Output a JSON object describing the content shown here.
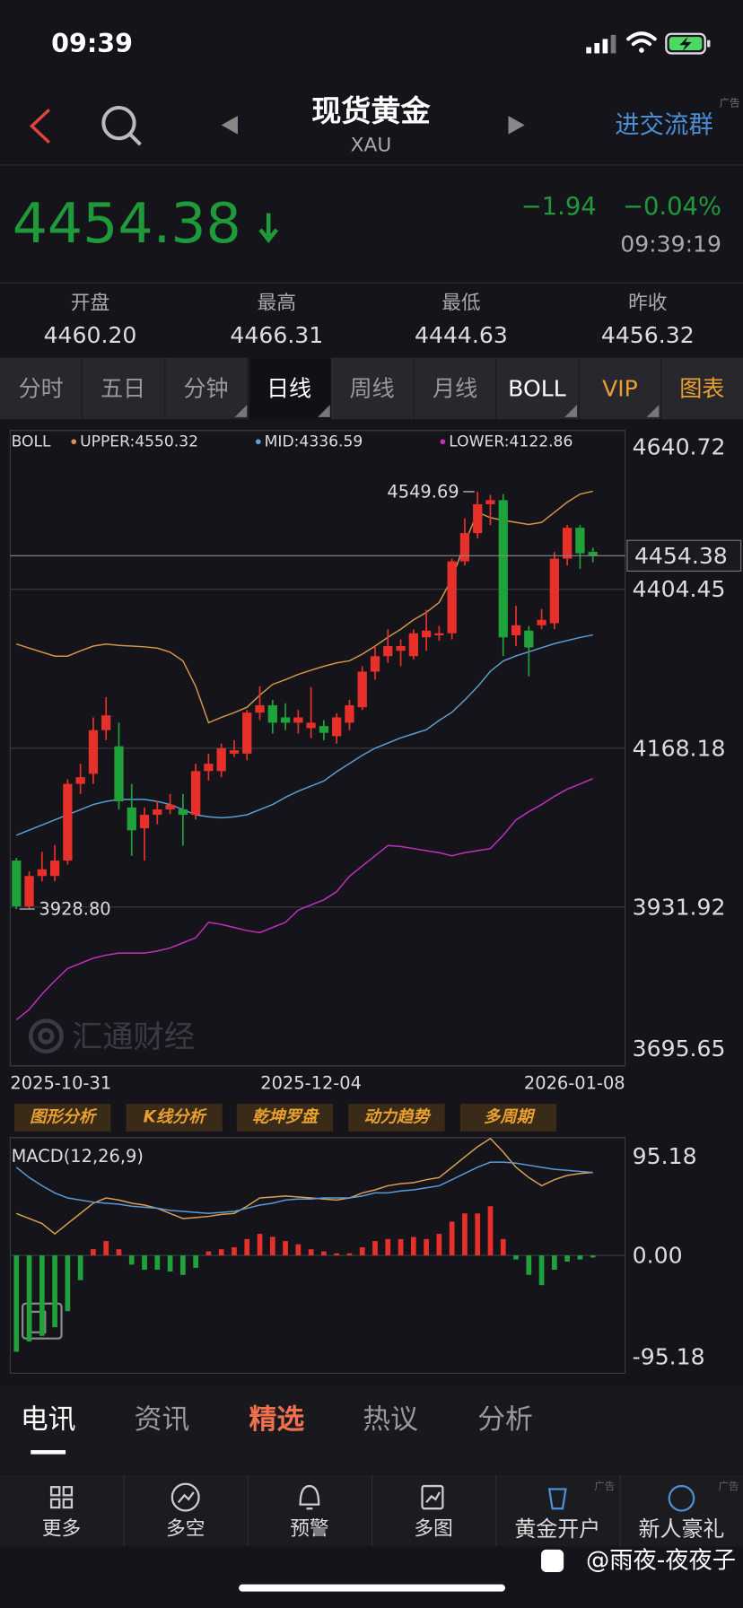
{
  "status": {
    "time": "09:39"
  },
  "header": {
    "title": "现货黄金",
    "subtitle": "XAU",
    "action": "进交流群",
    "ad": "广告"
  },
  "quote": {
    "price": "4454.38",
    "change": "−1.94",
    "change_pct": "−0.04%",
    "time": "09:39:19"
  },
  "stats": [
    {
      "label": "开盘",
      "value": "4460.20"
    },
    {
      "label": "最高",
      "value": "4466.31"
    },
    {
      "label": "最低",
      "value": "4444.63"
    },
    {
      "label": "昨收",
      "value": "4456.32"
    }
  ],
  "tabs": [
    "分时",
    "五日",
    "分钟",
    "日线",
    "周线",
    "月线",
    "BOLL",
    "VIP",
    "图表"
  ],
  "tools": [
    "图形分析",
    "K线分析",
    "乾坤罗盘",
    "动力趋势",
    "多周期"
  ],
  "news_tabs": [
    "电讯",
    "资讯",
    "精选",
    "热议",
    "分析"
  ],
  "nav": [
    "更多",
    "多空",
    "预警",
    "多图",
    "黄金开户",
    "新人豪礼"
  ],
  "watermark": "@雨夜-夜夜子",
  "chart_data": [
    {
      "type": "candlestick",
      "indicator": "BOLL",
      "watermark": "汇通财经",
      "up_color": "#e8302a",
      "down_color": "#1fa23a",
      "categories": [
        "2025-10-31",
        null,
        null,
        null,
        null,
        null,
        null,
        null,
        null,
        null,
        null,
        null,
        null,
        null,
        null,
        null,
        null,
        null,
        null,
        null,
        null,
        null,
        null,
        "2025-12-04",
        null,
        null,
        null,
        null,
        null,
        null,
        null,
        null,
        null,
        null,
        null,
        null,
        null,
        null,
        null,
        null,
        null,
        null,
        null,
        null,
        null,
        "2026-01-08"
      ],
      "open": [
        4001,
        3933,
        3978,
        3978,
        4001,
        4115,
        4130,
        4195,
        4171,
        4080,
        4049,
        4069,
        4077,
        4077,
        4069,
        4134,
        4134,
        4160,
        4160,
        4221,
        4232,
        4214,
        4206,
        4198,
        4201,
        4186,
        4206,
        4229,
        4282,
        4305,
        4313,
        4305,
        4333,
        4336,
        4339,
        4446,
        4488,
        4531,
        4537,
        4336,
        4343,
        4351,
        4354,
        4450,
        4496,
        4460.2
      ],
      "high": [
        4005,
        3985,
        4014,
        4024,
        4122,
        4145,
        4214,
        4244,
        4206,
        4115,
        4080,
        4090,
        4100,
        4100,
        4145,
        4160,
        4175,
        4180,
        4225,
        4260,
        4240,
        4235,
        4225,
        4259,
        4210,
        4220,
        4240,
        4290,
        4320,
        4345,
        4330,
        4345,
        4374,
        4350,
        4450,
        4510,
        4549.69,
        4545,
        4546,
        4380,
        4350,
        4375,
        4460,
        4500,
        4500,
        4466.31
      ],
      "low": [
        3928.8,
        3929,
        3970,
        3970,
        3995,
        4100,
        4115,
        4180,
        4077,
        4008,
        4001,
        4055,
        4070,
        4023,
        4062,
        4120,
        4125,
        4155,
        4150,
        4210,
        4190,
        4195,
        4190,
        4183,
        4180,
        4175,
        4195,
        4225,
        4270,
        4295,
        4290,
        4300,
        4313,
        4328,
        4330,
        4440,
        4480,
        4500,
        4305,
        4320,
        4275,
        4345,
        4345,
        4440,
        4435,
        4444.63
      ],
      "close": [
        3933,
        3978,
        3988,
        4001,
        4115,
        4125,
        4195,
        4217,
        4089,
        4046,
        4069,
        4077,
        4084,
        4069,
        4134,
        4145,
        4168,
        4165,
        4221,
        4232,
        4206,
        4206,
        4214,
        4206,
        4191,
        4214,
        4232,
        4282,
        4305,
        4320,
        4320,
        4339,
        4343,
        4339,
        4446,
        4488,
        4531,
        4537,
        4333,
        4351,
        4318,
        4359,
        4450,
        4496,
        4458,
        4454.38
      ],
      "series": [
        {
          "name": "UPPER:4550.32",
          "color": "#d4944a",
          "values": [
            4323,
            4317,
            4311,
            4305,
            4305,
            4313,
            4320,
            4323,
            4321,
            4320,
            4319,
            4317,
            4311,
            4298,
            4260,
            4206,
            4214,
            4221,
            4229,
            4247,
            4263,
            4270,
            4278,
            4284,
            4290,
            4295,
            4298,
            4308,
            4320,
            4333,
            4345,
            4359,
            4370,
            4385,
            4420,
            4473,
            4519,
            4511,
            4507,
            4504,
            4501,
            4504,
            4519,
            4534,
            4546,
            4550.32
          ]
        },
        {
          "name": "MID:4336.59",
          "color": "#5a9fd4",
          "values": [
            4038.6,
            4046.2,
            4053.8,
            4061.5,
            4069.1,
            4076.7,
            4084.3,
            4088.9,
            4092.0,
            4092.0,
            4092.0,
            4088.9,
            4084.3,
            4076.7,
            4069.1,
            4066.0,
            4064.5,
            4066.0,
            4069.1,
            4076.7,
            4084.3,
            4095.0,
            4104.1,
            4111.8,
            4119.4,
            4133.1,
            4145.3,
            4157.5,
            4168.2,
            4175.8,
            4183.4,
            4189.5,
            4195.6,
            4209.3,
            4221.5,
            4239.8,
            4259.6,
            4282.5,
            4297.7,
            4305.4,
            4311.5,
            4317.5,
            4323.6,
            4328.2,
            4332.8,
            4336.59
          ]
        },
        {
          "name": "LOWER:4122.86",
          "color": "#c030c0",
          "values": [
            3764.2,
            3779.5,
            3802.3,
            3822.2,
            3840.4,
            3848.1,
            3855.7,
            3860.3,
            3863.3,
            3863.3,
            3863.3,
            3866.4,
            3870.9,
            3878.5,
            3886.2,
            3909.0,
            3906.0,
            3901.4,
            3896.8,
            3893.8,
            3901.4,
            3909.0,
            3927.3,
            3934.9,
            3942.6,
            3954.8,
            3977.6,
            3992.9,
            4008.1,
            4023.4,
            4021.8,
            4018.8,
            4015.7,
            4012.7,
            4008.1,
            4012.7,
            4015.7,
            4018.8,
            4038.6,
            4061.5,
            4073.7,
            4084.3,
            4096.5,
            4107.2,
            4114.8,
            4122.86
          ]
        }
      ],
      "ylim": [
        3695.65,
        4640.72
      ],
      "yticks": [
        4640.72,
        4404.45,
        4168.18,
        3931.92,
        3695.65
      ],
      "last_price": 4454.38,
      "max_label": "4549.69",
      "min_label": "3928.80"
    },
    {
      "type": "macd",
      "title": "MACD(12,26,9)",
      "up_color": "#e8302a",
      "down_color": "#1fa23a",
      "values": [
        -77.8,
        -69.5,
        -65.0,
        -58.0,
        -45.0,
        -20.0,
        5.0,
        11.6,
        5.0,
        -7.4,
        -11.6,
        -11.6,
        -13.0,
        -15.7,
        -10.0,
        3.3,
        5.0,
        6.6,
        13.2,
        17.4,
        15.0,
        11.6,
        9.0,
        5.0,
        3.3,
        1.7,
        1.7,
        6.6,
        11.6,
        13.2,
        13.2,
        14.9,
        13.2,
        17.4,
        27.3,
        33.9,
        33.9,
        39.7,
        13.2,
        -3.3,
        -15.7,
        -24.0,
        -11.6,
        -5.0,
        -3.3,
        -1.7
      ],
      "series": [
        {
          "color": "#d9a050",
          "values": [
            33.9,
            29.8,
            25.7,
            17.4,
            25.7,
            33.9,
            42.2,
            46.4,
            44.7,
            42.2,
            40.6,
            38.1,
            33.9,
            29.8,
            30.6,
            31.5,
            33.1,
            33.9,
            39.7,
            46.4,
            47.2,
            48.0,
            47.2,
            46.4,
            45.5,
            44.7,
            46.4,
            50.5,
            53.0,
            56.3,
            57.9,
            58.8,
            61.2,
            62.9,
            71.2,
            79.5,
            87.7,
            94.4,
            83.6,
            71.2,
            62.9,
            56.3,
            61.2,
            64.6,
            66.2,
            67.0
          ]
        },
        {
          "color": "#5b9bd5",
          "values": [
            71.2,
            62.9,
            56.3,
            50.5,
            46.4,
            44.7,
            43.0,
            42.2,
            41.4,
            39.7,
            38.9,
            38.1,
            36.4,
            35.6,
            34.8,
            33.9,
            34.8,
            35.6,
            38.1,
            40.6,
            42.2,
            44.7,
            45.5,
            45.5,
            46.4,
            46.4,
            46.4,
            48.0,
            50.5,
            50.5,
            52.1,
            53.0,
            54.6,
            56.3,
            61.2,
            66.2,
            71.2,
            75.3,
            75.3,
            74.5,
            72.8,
            71.2,
            69.5,
            68.7,
            67.9,
            67.0
          ]
        }
      ],
      "ylim": [
        -95.18,
        95.18
      ],
      "yticks": [
        95.18,
        {
          "value": 0,
          "label": "0.00"
        },
        -95.18
      ]
    }
  ]
}
